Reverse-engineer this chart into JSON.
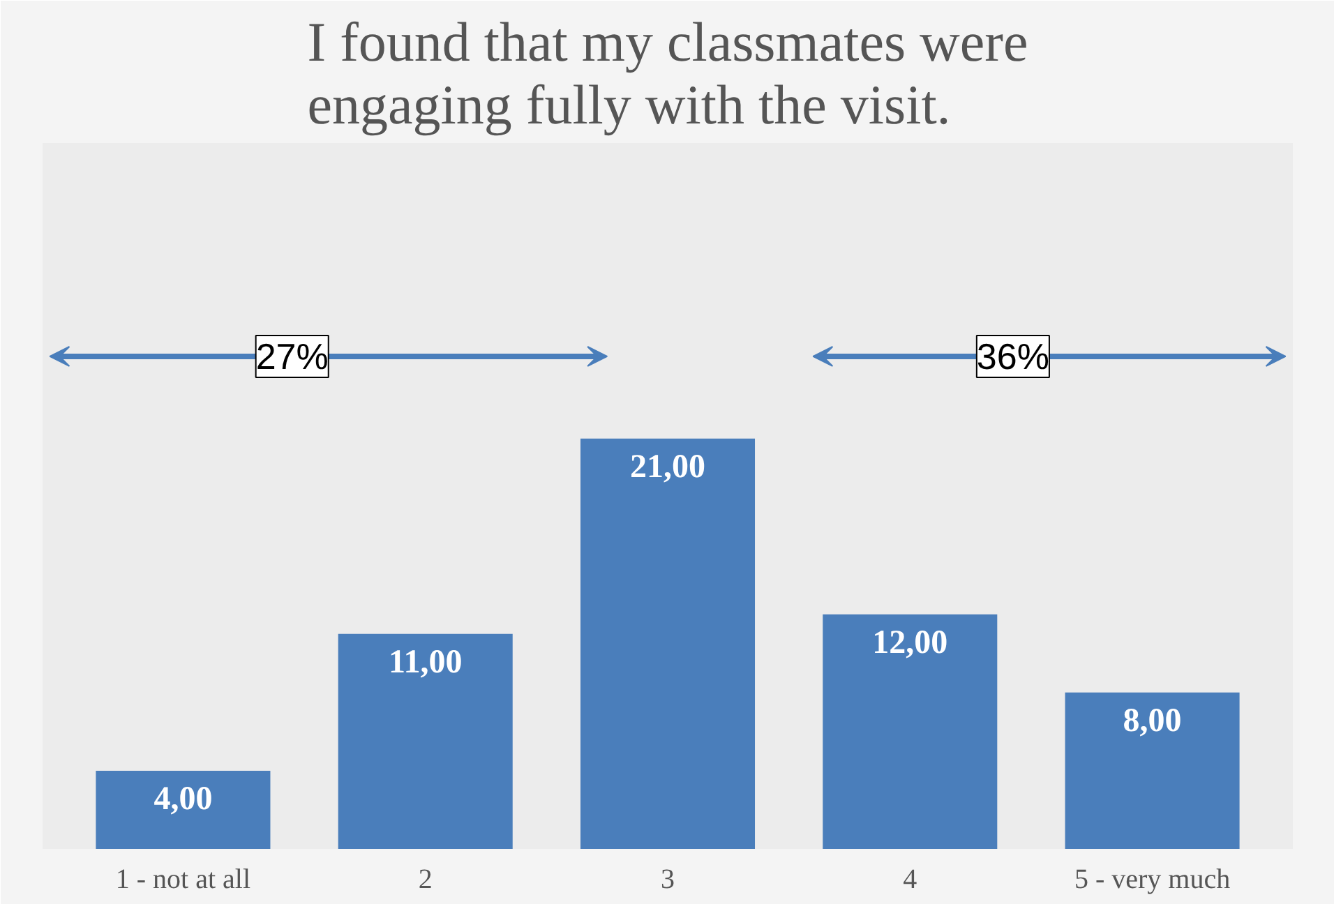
{
  "chart_data": {
    "type": "bar",
    "title": "I found that my classmates were engaging fully with the visit.",
    "categories": [
      "1 - not at all",
      "2",
      "3",
      "4",
      "5 - very much"
    ],
    "values": [
      4,
      11,
      21,
      12,
      8
    ],
    "value_labels": [
      "4,00",
      "11,00",
      "21,00",
      "12,00",
      "8,00"
    ],
    "color": "#4a7ebb",
    "annotations": [
      "27%",
      "36%"
    ]
  }
}
